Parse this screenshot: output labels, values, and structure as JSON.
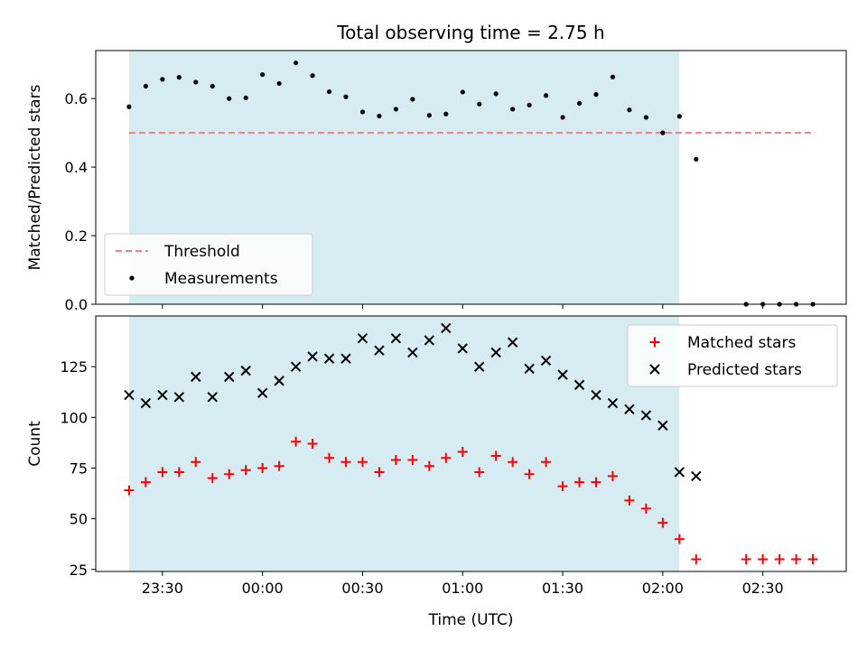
{
  "chart_data": [
    {
      "type": "scatter",
      "title": "Total observing time = 2.75 h",
      "ylabel": "Matched/Predicted stars",
      "xlabel": "",
      "ylim": [
        0,
        0.74
      ],
      "yticks": [
        0.0,
        0.2,
        0.4,
        0.6
      ],
      "ytick_labels": [
        "0.0",
        "0.2",
        "0.4",
        "0.6"
      ],
      "shaded_span": {
        "from": "23:20",
        "to": "02:05",
        "color": "#add8e6"
      },
      "threshold": {
        "name": "Threshold",
        "value": 0.5,
        "from": "23:20",
        "to": "02:45",
        "color": "#f08080",
        "style": "dashed"
      },
      "legend": {
        "placement": "lower-left",
        "entries": [
          "Threshold",
          "Measurements"
        ]
      },
      "series": [
        {
          "name": "Measurements",
          "marker": "dot",
          "color": "#000000",
          "points": [
            [
              "23:20",
              0.576
            ],
            [
              "23:25",
              0.636
            ],
            [
              "23:30",
              0.656
            ],
            [
              "23:35",
              0.662
            ],
            [
              "23:40",
              0.648
            ],
            [
              "23:45",
              0.636
            ],
            [
              "23:50",
              0.6
            ],
            [
              "23:55",
              0.602
            ],
            [
              "00:00",
              0.67
            ],
            [
              "00:05",
              0.644
            ],
            [
              "00:10",
              0.704
            ],
            [
              "00:15",
              0.667
            ],
            [
              "00:20",
              0.62
            ],
            [
              "00:25",
              0.605
            ],
            [
              "00:30",
              0.561
            ],
            [
              "00:35",
              0.549
            ],
            [
              "00:40",
              0.569
            ],
            [
              "00:45",
              0.598
            ],
            [
              "00:50",
              0.551
            ],
            [
              "00:55",
              0.555
            ],
            [
              "01:00",
              0.619
            ],
            [
              "01:05",
              0.584
            ],
            [
              "01:10",
              0.614
            ],
            [
              "01:15",
              0.569
            ],
            [
              "01:20",
              0.581
            ],
            [
              "01:25",
              0.609
            ],
            [
              "01:30",
              0.545
            ],
            [
              "01:35",
              0.586
            ],
            [
              "01:40",
              0.612
            ],
            [
              "01:45",
              0.663
            ],
            [
              "01:50",
              0.567
            ],
            [
              "01:55",
              0.545
            ],
            [
              "02:00",
              0.5
            ],
            [
              "02:05",
              0.548
            ],
            [
              "02:10",
              0.423
            ],
            [
              "02:25",
              0.0
            ],
            [
              "02:30",
              0.0
            ],
            [
              "02:35",
              0.0
            ],
            [
              "02:40",
              0.0
            ],
            [
              "02:45",
              0.0
            ]
          ]
        }
      ]
    },
    {
      "type": "scatter",
      "title": "",
      "ylabel": "Count",
      "xlabel": "Time (UTC)",
      "ylim": [
        24,
        150
      ],
      "yticks": [
        25,
        50,
        75,
        100,
        125
      ],
      "ytick_labels": [
        "25",
        "50",
        "75",
        "100",
        "125"
      ],
      "x_range": [
        "23:10",
        "02:55"
      ],
      "xticks": [
        "23:30",
        "00:00",
        "00:30",
        "01:00",
        "01:30",
        "02:00",
        "02:30"
      ],
      "xtick_labels": [
        "23:30",
        "00:00",
        "00:30",
        "01:00",
        "01:30",
        "02:00",
        "02:30"
      ],
      "shaded_span": {
        "from": "23:20",
        "to": "02:05",
        "color": "#add8e6"
      },
      "legend": {
        "placement": "upper-right",
        "entries": [
          "Matched stars",
          "Predicted stars"
        ]
      },
      "series": [
        {
          "name": "Matched stars",
          "marker": "plus",
          "color": "#ff0000",
          "points": [
            [
              "23:20",
              64
            ],
            [
              "23:25",
              68
            ],
            [
              "23:30",
              73
            ],
            [
              "23:35",
              73
            ],
            [
              "23:40",
              78
            ],
            [
              "23:45",
              70
            ],
            [
              "23:50",
              72
            ],
            [
              "23:55",
              74
            ],
            [
              "00:00",
              75
            ],
            [
              "00:05",
              76
            ],
            [
              "00:10",
              88
            ],
            [
              "00:15",
              87
            ],
            [
              "00:20",
              80
            ],
            [
              "00:25",
              78
            ],
            [
              "00:30",
              78
            ],
            [
              "00:35",
              73
            ],
            [
              "00:40",
              79
            ],
            [
              "00:45",
              79
            ],
            [
              "00:50",
              76
            ],
            [
              "00:55",
              80
            ],
            [
              "01:00",
              83
            ],
            [
              "01:05",
              73
            ],
            [
              "01:10",
              81
            ],
            [
              "01:15",
              78
            ],
            [
              "01:20",
              72
            ],
            [
              "01:25",
              78
            ],
            [
              "01:30",
              66
            ],
            [
              "01:35",
              68
            ],
            [
              "01:40",
              68
            ],
            [
              "01:45",
              71
            ],
            [
              "01:50",
              59
            ],
            [
              "01:55",
              55
            ],
            [
              "02:00",
              48
            ],
            [
              "02:05",
              40
            ],
            [
              "02:10",
              30
            ],
            [
              "02:25",
              30
            ],
            [
              "02:30",
              30
            ],
            [
              "02:35",
              30
            ],
            [
              "02:40",
              30
            ],
            [
              "02:45",
              30
            ]
          ]
        },
        {
          "name": "Predicted stars",
          "marker": "x",
          "color": "#000000",
          "points": [
            [
              "23:20",
              111
            ],
            [
              "23:25",
              107
            ],
            [
              "23:30",
              111
            ],
            [
              "23:35",
              110
            ],
            [
              "23:40",
              120
            ],
            [
              "23:45",
              110
            ],
            [
              "23:50",
              120
            ],
            [
              "23:55",
              123
            ],
            [
              "00:00",
              112
            ],
            [
              "00:05",
              118
            ],
            [
              "00:10",
              125
            ],
            [
              "00:15",
              130
            ],
            [
              "00:20",
              129
            ],
            [
              "00:25",
              129
            ],
            [
              "00:30",
              139
            ],
            [
              "00:35",
              133
            ],
            [
              "00:40",
              139
            ],
            [
              "00:45",
              132
            ],
            [
              "00:50",
              138
            ],
            [
              "00:55",
              144
            ],
            [
              "01:00",
              134
            ],
            [
              "01:05",
              125
            ],
            [
              "01:10",
              132
            ],
            [
              "01:15",
              137
            ],
            [
              "01:20",
              124
            ],
            [
              "01:25",
              128
            ],
            [
              "01:30",
              121
            ],
            [
              "01:35",
              116
            ],
            [
              "01:40",
              111
            ],
            [
              "01:45",
              107
            ],
            [
              "01:50",
              104
            ],
            [
              "01:55",
              101
            ],
            [
              "02:00",
              96
            ],
            [
              "02:05",
              73
            ],
            [
              "02:10",
              71
            ]
          ]
        }
      ]
    }
  ]
}
